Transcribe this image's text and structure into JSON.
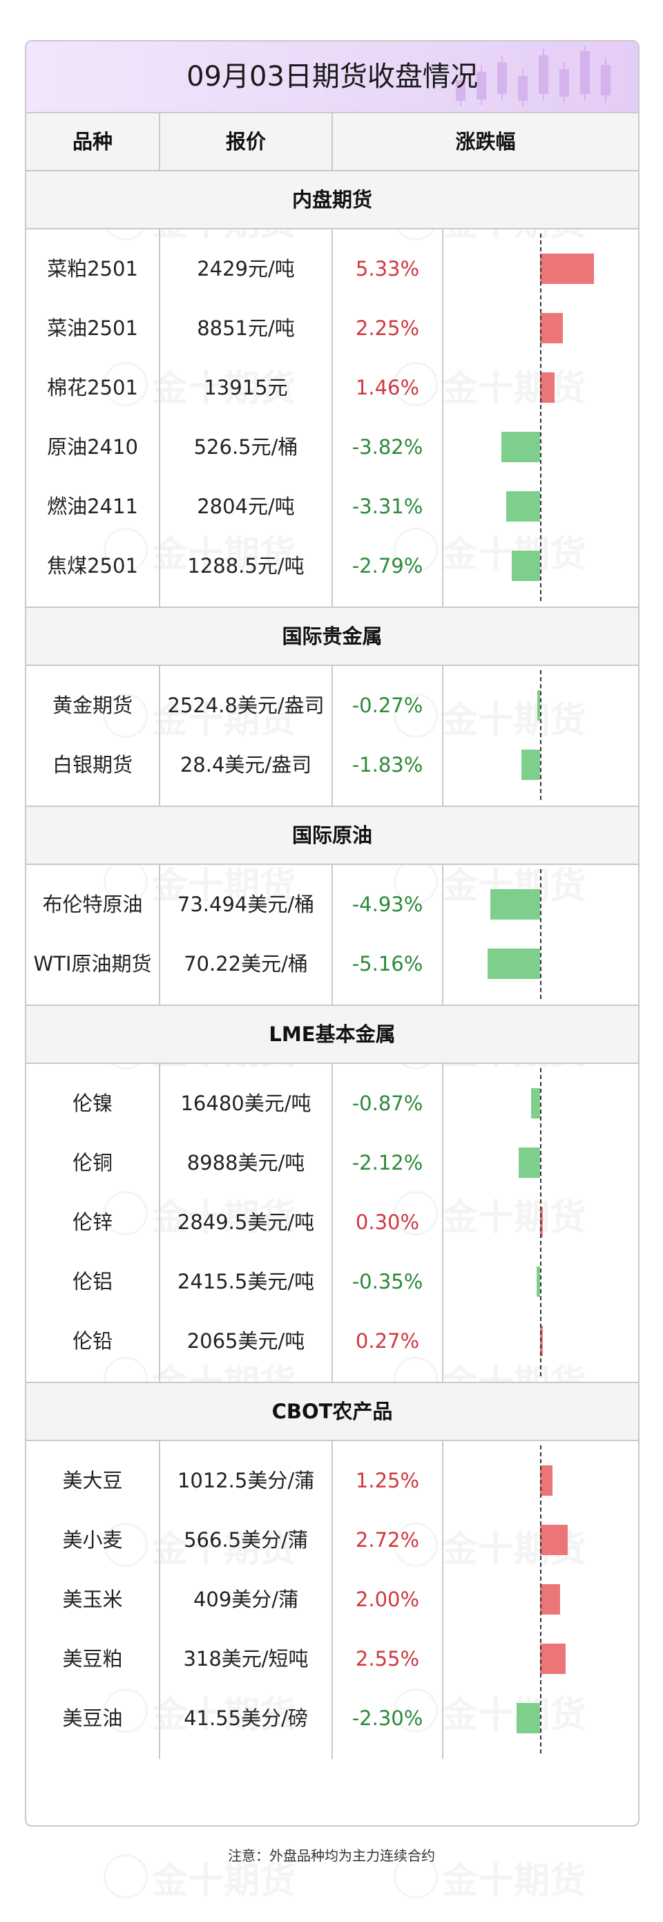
{
  "title": "09月03日期货收盘情况",
  "watermark": "金十期货",
  "header": {
    "col_name": "品种",
    "col_price": "报价",
    "col_change": "涨跌幅"
  },
  "colors": {
    "up": "#d0383f",
    "down": "#2c8a3a",
    "up_bar": "#ec7677",
    "down_bar": "#7ecf8c",
    "title_bg": "#ead9f8"
  },
  "sections": [
    {
      "label": "内盘期货",
      "rows": [
        {
          "name": "菜粕2501",
          "price": "2429元/吨",
          "change": "5.33%",
          "value": 5.33
        },
        {
          "name": "菜油2501",
          "price": "8851元/吨",
          "change": "2.25%",
          "value": 2.25
        },
        {
          "name": "棉花2501",
          "price": "13915元",
          "change": "1.46%",
          "value": 1.46
        },
        {
          "name": "原油2410",
          "price": "526.5元/桶",
          "change": "-3.82%",
          "value": -3.82
        },
        {
          "name": "燃油2411",
          "price": "2804元/吨",
          "change": "-3.31%",
          "value": -3.31
        },
        {
          "name": "焦煤2501",
          "price": "1288.5元/吨",
          "change": "-2.79%",
          "value": -2.79
        }
      ]
    },
    {
      "label": "国际贵金属",
      "rows": [
        {
          "name": "黄金期货",
          "price": "2524.8美元/盎司",
          "change": "-0.27%",
          "value": -0.27
        },
        {
          "name": "白银期货",
          "price": "28.4美元/盎司",
          "change": "-1.83%",
          "value": -1.83
        }
      ]
    },
    {
      "label": "国际原油",
      "rows": [
        {
          "name": "布伦特原油",
          "price": "73.494美元/桶",
          "change": "-4.93%",
          "value": -4.93
        },
        {
          "name": "WTI原油期货",
          "price": "70.22美元/桶",
          "change": "-5.16%",
          "value": -5.16
        }
      ]
    },
    {
      "label": "LME基本金属",
      "rows": [
        {
          "name": "伦镍",
          "price": "16480美元/吨",
          "change": "-0.87%",
          "value": -0.87
        },
        {
          "name": "伦铜",
          "price": "8988美元/吨",
          "change": "-2.12%",
          "value": -2.12
        },
        {
          "name": "伦锌",
          "price": "2849.5美元/吨",
          "change": "0.30%",
          "value": 0.3
        },
        {
          "name": "伦铝",
          "price": "2415.5美元/吨",
          "change": "-0.35%",
          "value": -0.35
        },
        {
          "name": "伦铅",
          "price": "2065美元/吨",
          "change": "0.27%",
          "value": 0.27
        }
      ]
    },
    {
      "label": "CBOT农产品",
      "rows": [
        {
          "name": "美大豆",
          "price": "1012.5美分/蒲",
          "change": "1.25%",
          "value": 1.25
        },
        {
          "name": "美小麦",
          "price": "566.5美分/蒲",
          "change": "2.72%",
          "value": 2.72
        },
        {
          "name": "美玉米",
          "price": "409美分/蒲",
          "change": "2.00%",
          "value": 2.0
        },
        {
          "name": "美豆粕",
          "price": "318美元/短吨",
          "change": "2.55%",
          "value": 2.55
        },
        {
          "name": "美豆油",
          "price": "41.55美分/磅",
          "change": "-2.30%",
          "value": -2.3
        }
      ]
    }
  ],
  "footnote": "注意：外盘品种均为主力连续合约"
}
